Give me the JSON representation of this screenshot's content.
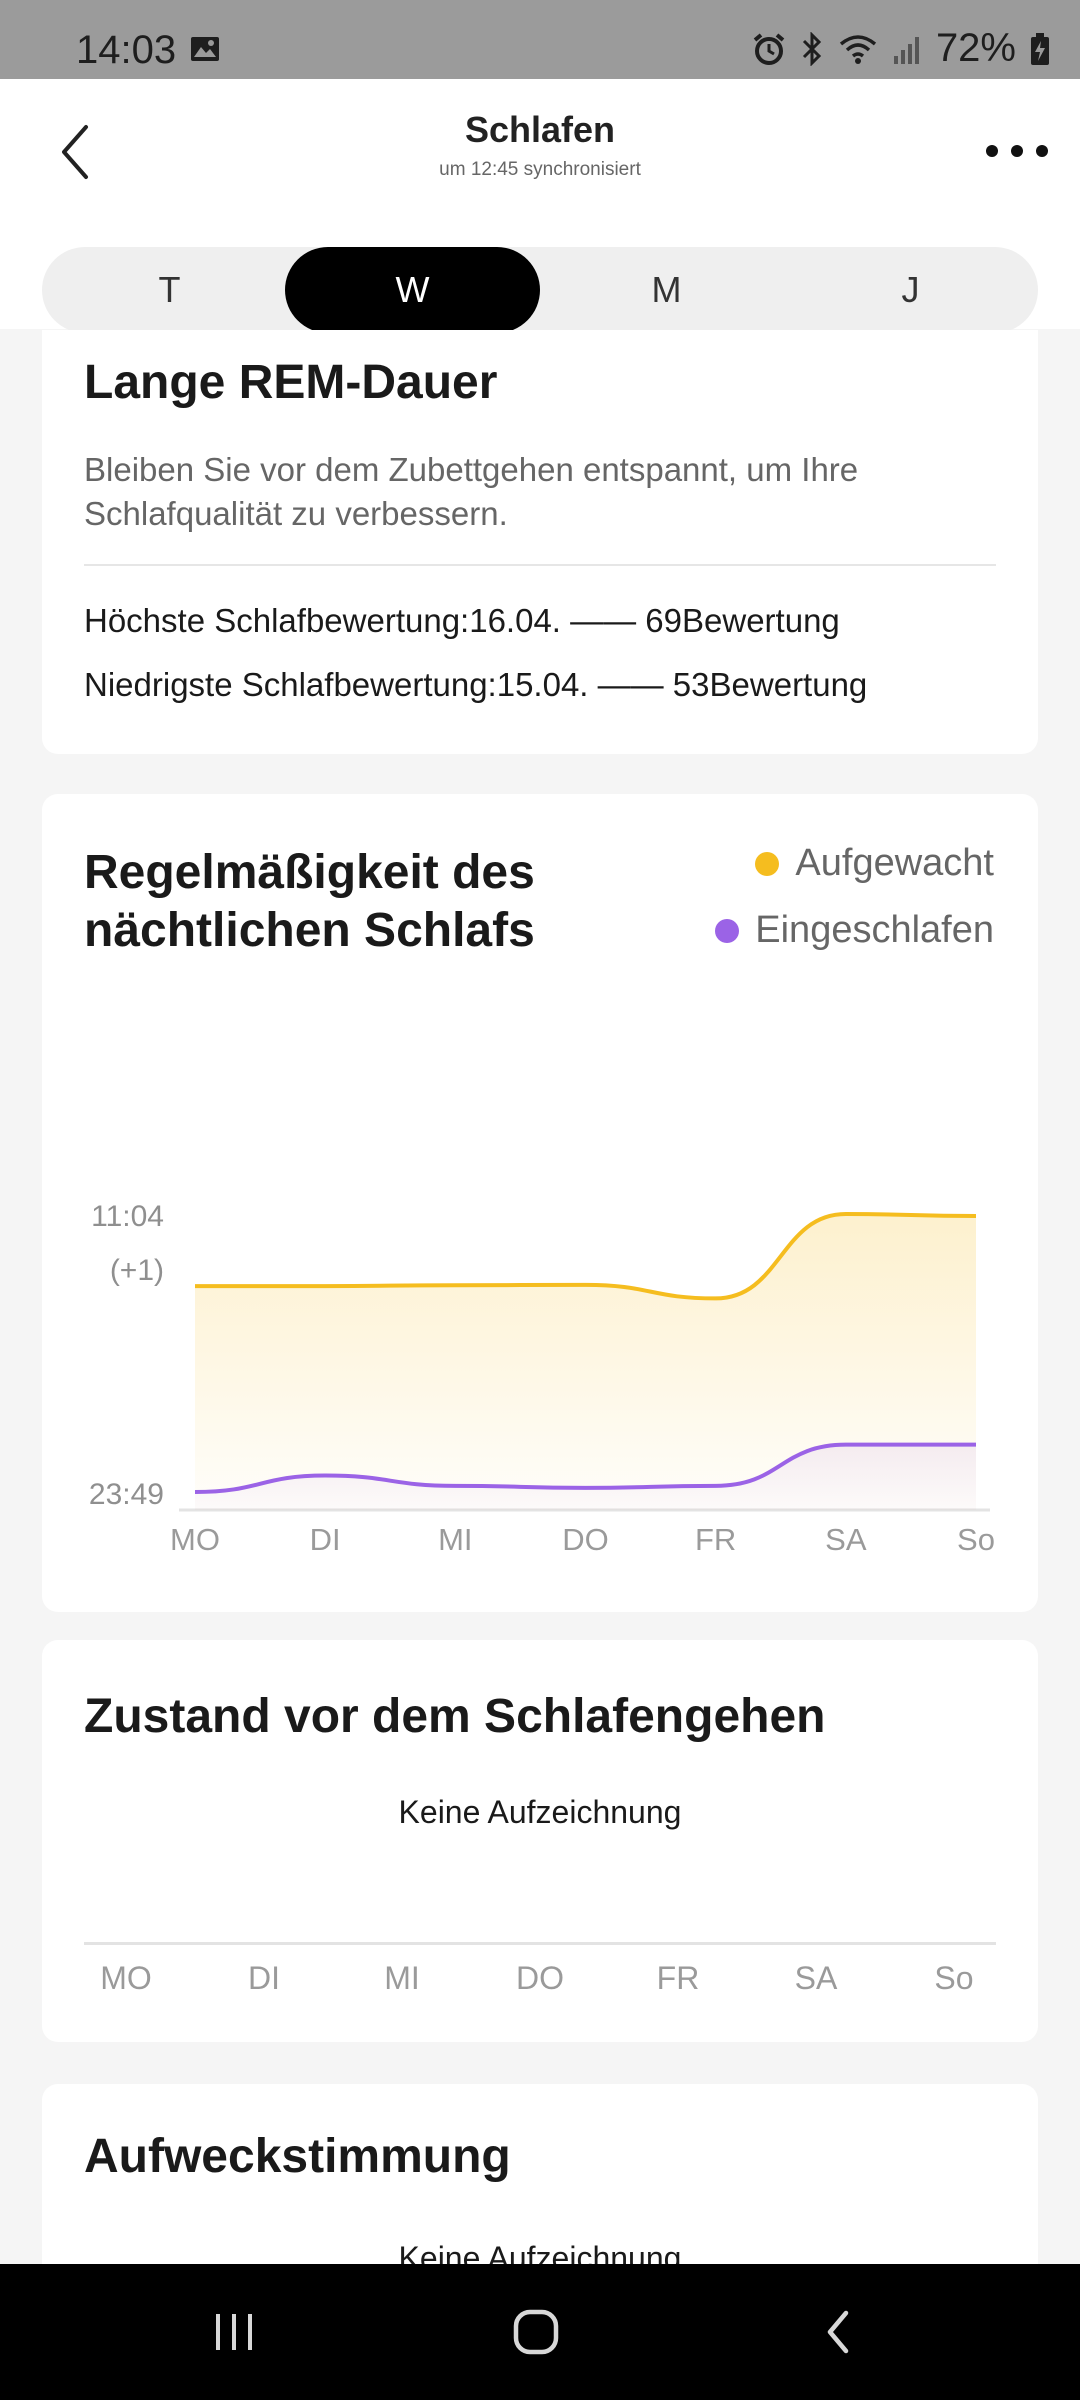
{
  "status_bar": {
    "time": "14:03",
    "battery": "72%",
    "icons": [
      "gallery-icon",
      "alarm-icon",
      "bluetooth-icon",
      "wifi-icon",
      "signal-icon",
      "battery-charging-icon"
    ]
  },
  "header": {
    "title": "Schlafen",
    "subtitle": "um 12:45 synchronisiert",
    "back_icon": "back-icon",
    "more_icon": "more-icon"
  },
  "tabs": [
    {
      "label": "T",
      "active": false
    },
    {
      "label": "W",
      "active": true
    },
    {
      "label": "M",
      "active": false
    },
    {
      "label": "J",
      "active": false
    }
  ],
  "rem_card": {
    "title": "Lange REM-Dauer",
    "description": "Bleiben Sie vor dem Zubettgehen entspannt, um Ihre Schlafqualität zu verbessern.",
    "highest": "Höchste Schlafbewertung:16.04. —— 69Bewertung",
    "lowest": "Niedrigste Schlafbewertung:15.04. —— 53Bewertung"
  },
  "regularity_card": {
    "title": "Regelmäßigkeit des nächtlichen Schlafs",
    "legend": {
      "wake": "Aufgewacht",
      "sleep": "Eingeschlafen"
    },
    "colors": {
      "wake": "#f5bd1f",
      "sleep": "#9b63e6"
    }
  },
  "chart_data": {
    "type": "area",
    "title": "Regelmäßigkeit des nächtlichen Schlafs",
    "x": [
      "MO",
      "DI",
      "MI",
      "DO",
      "FR",
      "SA",
      "So"
    ],
    "y_tick_labels": [
      "11:04",
      "(+1)",
      "23:49"
    ],
    "ylim_minutes": [
      0,
      675
    ],
    "series": [
      {
        "name": "Aufgewacht",
        "color": "#f5bd1f",
        "values": [
          500,
          500,
          502,
          503,
          470,
          675,
          670
        ]
      },
      {
        "name": "Eingeschlafen",
        "color": "#9b63e6",
        "values": [
          0,
          40,
          15,
          10,
          15,
          115,
          115
        ]
      }
    ],
    "grid": false,
    "legend_position": "top-right"
  },
  "state_card": {
    "title": "Zustand vor dem Schlafengehen",
    "empty_text": "Keine Aufzeichnung",
    "days": [
      "MO",
      "DI",
      "MI",
      "DO",
      "FR",
      "SA",
      "So"
    ]
  },
  "wake_card": {
    "title": "Aufweckstimmung",
    "empty_text": "Keine Aufzeichnung"
  },
  "nav_bar": {
    "icons": [
      "recent-apps-icon",
      "home-icon",
      "back-icon"
    ]
  }
}
